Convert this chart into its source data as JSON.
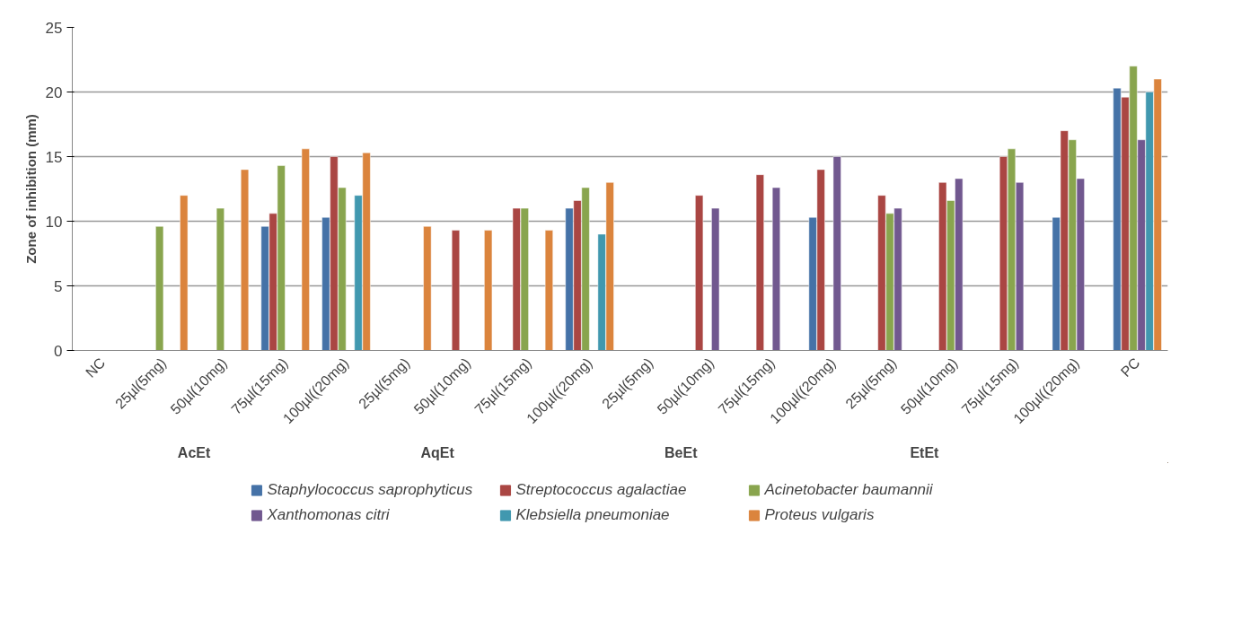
{
  "chart_data": {
    "type": "bar",
    "ylabel": "Zone of inhibition (mm)",
    "categories": [
      "NC",
      "25µl(5mg)",
      "50µl(10mg)",
      "75µl(15mg)",
      "100µl((20mg)",
      "25µl(5mg)",
      "50µl(10mg)",
      "75µl(15mg)",
      "100µl((20mg)",
      "25µl(5mg)",
      "50µl(10mg)",
      "75µl(15mg)",
      "100µl((20mg)",
      "25µl(5mg)",
      "50µl(10mg)",
      "75µl(15mg)",
      "100µl((20mg)",
      "PC"
    ],
    "series": [
      {
        "name": "Staphylococcus saprophyticus",
        "color": "#4572a7",
        "values": [
          null,
          null,
          null,
          9.6,
          10.3,
          null,
          null,
          null,
          11,
          null,
          null,
          null,
          10.3,
          null,
          null,
          null,
          10.3,
          20.3
        ]
      },
      {
        "name": "Streptococcus agalactiae",
        "color": "#aa4643",
        "values": [
          null,
          null,
          null,
          10.6,
          15,
          null,
          9.3,
          11,
          11.6,
          null,
          12,
          13.6,
          14,
          12,
          13,
          15,
          17,
          19.6
        ]
      },
      {
        "name": "Acinetobacter baumannii",
        "color": "#89a54e",
        "values": [
          null,
          9.6,
          11,
          14.3,
          12.6,
          null,
          null,
          11,
          12.6,
          null,
          null,
          null,
          null,
          10.6,
          11.6,
          15.6,
          16.3,
          22
        ]
      },
      {
        "name": "Xanthomonas citri",
        "color": "#71588f",
        "values": [
          null,
          null,
          null,
          null,
          null,
          null,
          null,
          null,
          null,
          null,
          11,
          12.6,
          15,
          11,
          13.3,
          13,
          13.3,
          16.3
        ]
      },
      {
        "name": "Klebsiella pneumoniae",
        "color": "#4198af",
        "values": [
          null,
          null,
          null,
          null,
          12,
          null,
          null,
          null,
          9,
          null,
          null,
          null,
          null,
          null,
          null,
          null,
          null,
          20
        ]
      },
      {
        "name": "Proteus vulgaris",
        "color": "#db843d",
        "values": [
          null,
          12,
          14,
          15.6,
          15.3,
          9.6,
          9.3,
          9.3,
          13,
          null,
          null,
          null,
          null,
          null,
          null,
          null,
          null,
          21
        ]
      }
    ],
    "annotations": [
      "AcEt",
      "AqEt",
      "BeEt",
      "EtEt"
    ],
    "ylim": [
      0,
      25
    ],
    "yticks": [
      0,
      5,
      10,
      15,
      20,
      25
    ],
    "grid": "y",
    "legend": "bottom"
  }
}
